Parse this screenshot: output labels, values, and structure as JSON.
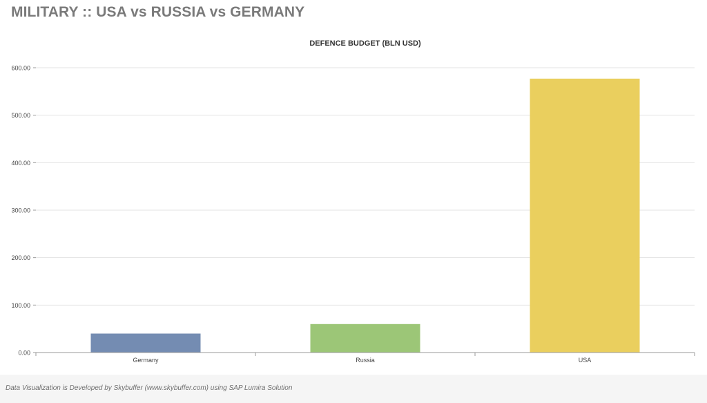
{
  "header": {
    "title": "MILITARY :: USA vs RUSSIA vs GERMANY"
  },
  "chart_data": {
    "type": "bar",
    "title": "DEFENCE BUDGET (BLN USD)",
    "xlabel": "",
    "ylabel": "",
    "categories": [
      "Germany",
      "Russia",
      "USA"
    ],
    "values": [
      40.0,
      60.0,
      577.0
    ],
    "colors": [
      "#748cb2",
      "#9cc677",
      "#eacf5e"
    ],
    "ylim": [
      0,
      600
    ],
    "yticks": [
      0,
      100,
      200,
      300,
      400,
      500,
      600
    ],
    "ytick_labels": [
      "0.00",
      "100.00",
      "200.00",
      "300.00",
      "400.00",
      "500.00",
      "600.00"
    ],
    "grid": true,
    "legend": "none"
  },
  "footer": {
    "credit": "Data Visualization is Developed by Skybuffer (www.skybuffer.com) using SAP Lumira Solution"
  }
}
